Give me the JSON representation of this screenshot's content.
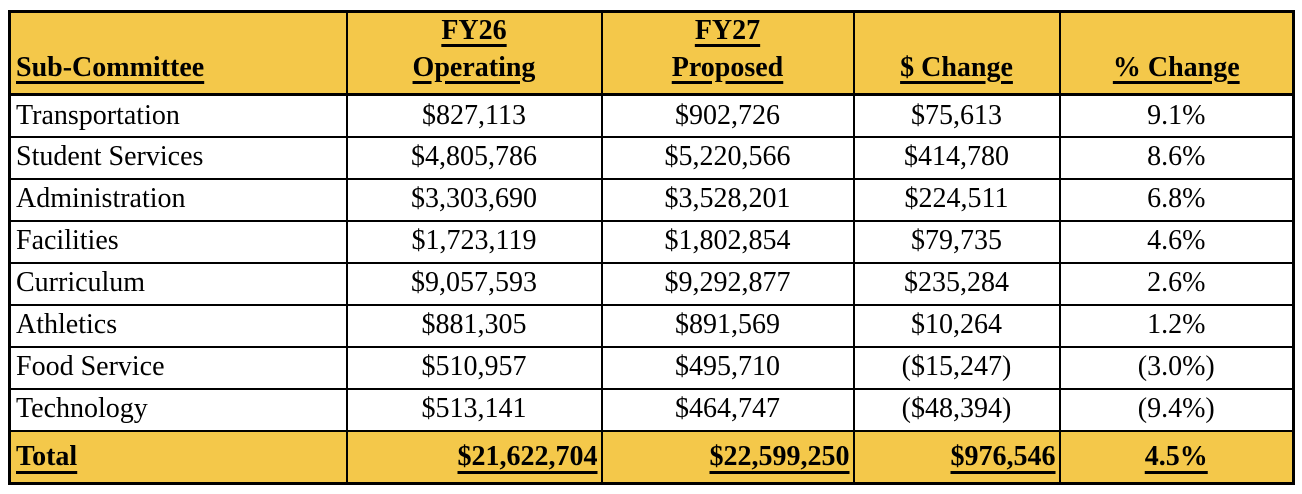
{
  "table": {
    "header": {
      "sub_committee": "Sub-Committee",
      "fy26_line1": "FY26",
      "fy26_line2": "Operating",
      "fy27_line1": "FY27",
      "fy27_line2": "Proposed",
      "dollar_change": "$ Change",
      "pct_change": "% Change"
    },
    "rows": [
      {
        "name": "Transportation",
        "fy26": "$827,113",
        "fy27": "$902,726",
        "dollar_change": "$75,613",
        "pct_change": "9.1%"
      },
      {
        "name": "Student Services",
        "fy26": "$4,805,786",
        "fy27": "$5,220,566",
        "dollar_change": "$414,780",
        "pct_change": "8.6%"
      },
      {
        "name": "Administration",
        "fy26": "$3,303,690",
        "fy27": "$3,528,201",
        "dollar_change": "$224,511",
        "pct_change": "6.8%"
      },
      {
        "name": "Facilities",
        "fy26": "$1,723,119",
        "fy27": "$1,802,854",
        "dollar_change": "$79,735",
        "pct_change": "4.6%"
      },
      {
        "name": "Curriculum",
        "fy26": "$9,057,593",
        "fy27": "$9,292,877",
        "dollar_change": "$235,284",
        "pct_change": "2.6%"
      },
      {
        "name": "Athletics",
        "fy26": "$881,305",
        "fy27": "$891,569",
        "dollar_change": "$10,264",
        "pct_change": "1.2%"
      },
      {
        "name": "Food Service",
        "fy26": "$510,957",
        "fy27": "$495,710",
        "dollar_change": "($15,247)",
        "pct_change": "(3.0%)"
      },
      {
        "name": "Technology",
        "fy26": "$513,141",
        "fy27": "$464,747",
        "dollar_change": "($48,394)",
        "pct_change": "(9.4%)"
      }
    ],
    "total": {
      "name": "Total",
      "fy26": "$21,622,704",
      "fy27": "$22,599,250",
      "dollar_change": "$976,546",
      "pct_change": "4.5%"
    }
  },
  "colors": {
    "header_bg": "#F4C84A",
    "total_bg": "#F4C84A",
    "row_bg": "#FFFFFF",
    "border": "#000000",
    "text": "#000000"
  }
}
